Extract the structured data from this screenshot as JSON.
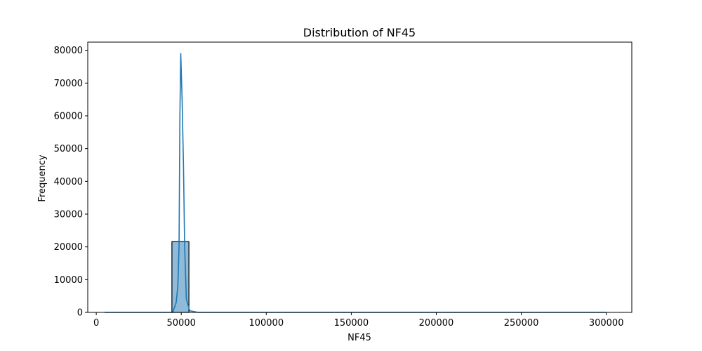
{
  "chart_data": {
    "type": "histogram",
    "title": "Distribution of NF45",
    "xlabel": "NF45",
    "ylabel": "Frequency",
    "xlim": [
      -5000,
      315000
    ],
    "ylim": [
      0,
      82500
    ],
    "x_ticks": [
      0,
      50000,
      100000,
      150000,
      200000,
      250000,
      300000
    ],
    "y_ticks": [
      0,
      10000,
      20000,
      30000,
      40000,
      50000,
      60000,
      70000,
      80000
    ],
    "bar_color": "#1f77b4",
    "bar_alpha": 0.5,
    "bar_edge_color": "#000000",
    "kde_color": "#1f77b4",
    "grid": false,
    "legend": "none",
    "bins": [
      {
        "x0": 44500,
        "x1": 54500,
        "value": 21600
      }
    ],
    "kde": {
      "x": [
        5000,
        40000,
        45000,
        47000,
        48000,
        48700,
        49200,
        49700,
        50500,
        51300,
        52000,
        53000,
        55000,
        60000,
        100000,
        200000,
        300000
      ],
      "y": [
        0,
        0,
        0,
        3000,
        8000,
        20000,
        60000,
        79000,
        65000,
        45000,
        20000,
        4000,
        500,
        0,
        0,
        0,
        0
      ]
    }
  }
}
